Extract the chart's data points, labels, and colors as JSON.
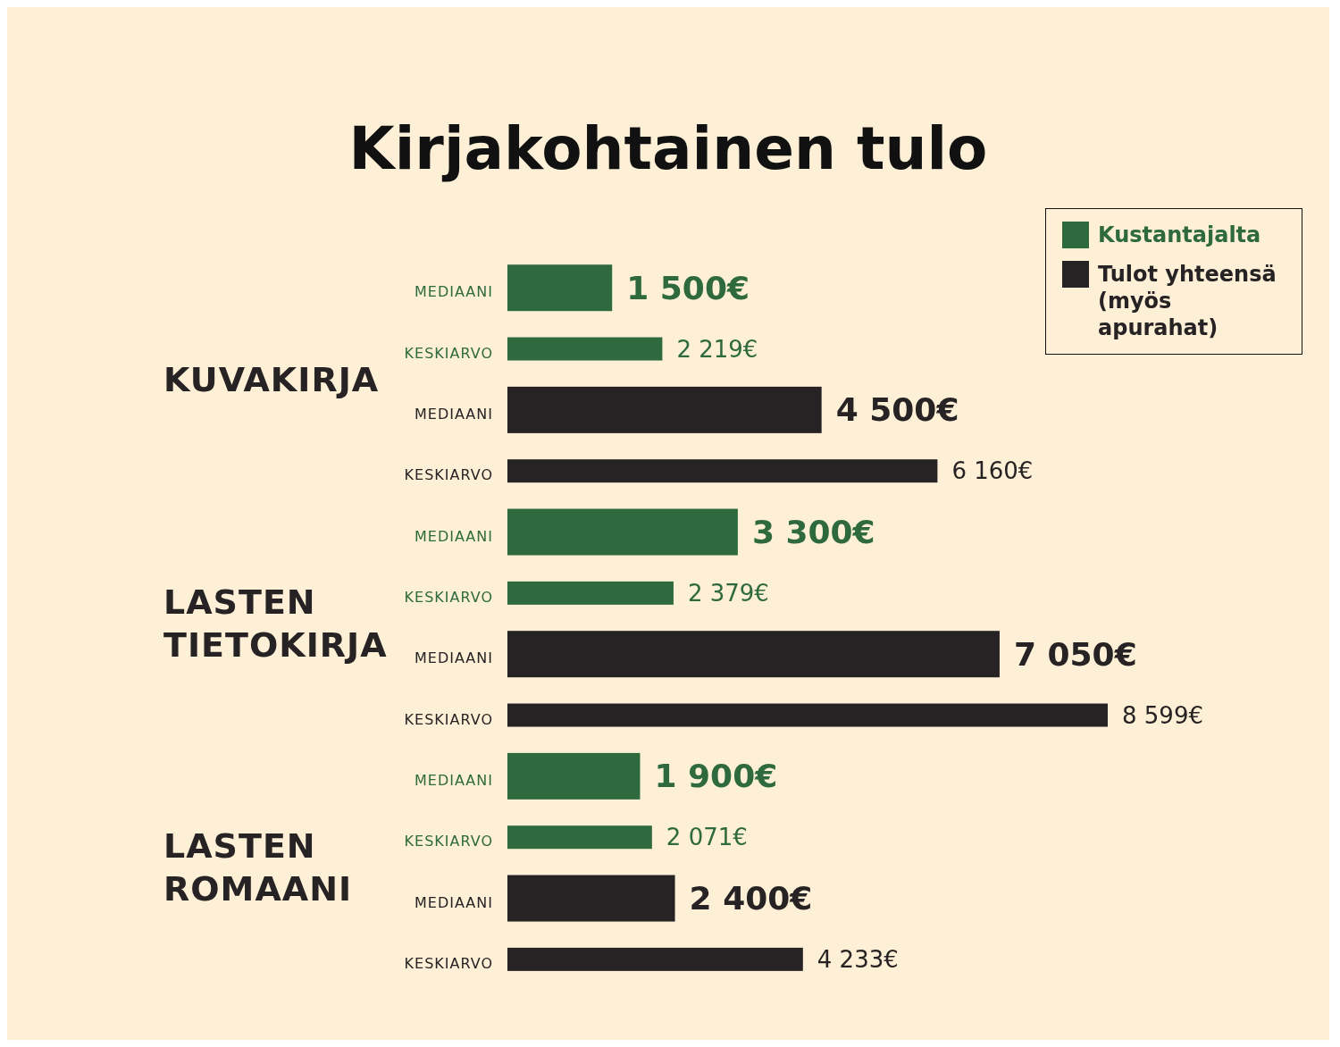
{
  "chart_data": {
    "type": "bar",
    "orientation": "horizontal",
    "title": "Kirjakohtainen tulo",
    "categories": [
      "MEDIAANI",
      "KESKIARVO",
      "MEDIAANI",
      "KESKIARVO",
      "MEDIAANI",
      "KESKIARVO",
      "MEDIAANI",
      "KESKIARVO",
      "MEDIAANI",
      "KESKIARVO",
      "MEDIAANI",
      "KESKIARVO"
    ],
    "series": [
      {
        "name": "Kustantajalta",
        "color": "#2e6a3e",
        "values": [
          1500,
          2219,
          null,
          null,
          3300,
          2379,
          null,
          null,
          1900,
          2071,
          null,
          null
        ],
        "value_labels": [
          "1 500€",
          "2 219€",
          null,
          null,
          "3 300€",
          "2 379€",
          null,
          null,
          "1 900€",
          "2 071€",
          null,
          null
        ]
      },
      {
        "name": "Tulot yhteensä (myös apurahat)",
        "color": "#272223",
        "values": [
          null,
          null,
          4500,
          6160,
          null,
          null,
          7050,
          8599,
          null,
          null,
          2400,
          4233
        ],
        "value_labels": [
          null,
          null,
          "4 500€",
          "6 160€",
          null,
          null,
          "7 050€",
          "8 599€",
          null,
          null,
          "2 400€",
          "4 233€"
        ]
      }
    ],
    "annotations": [
      "KUVAKIRJA",
      "LASTEN TIETOKIRJA",
      "LASTEN ROMAANI"
    ],
    "legend": "top right",
    "grid": false
  }
}
